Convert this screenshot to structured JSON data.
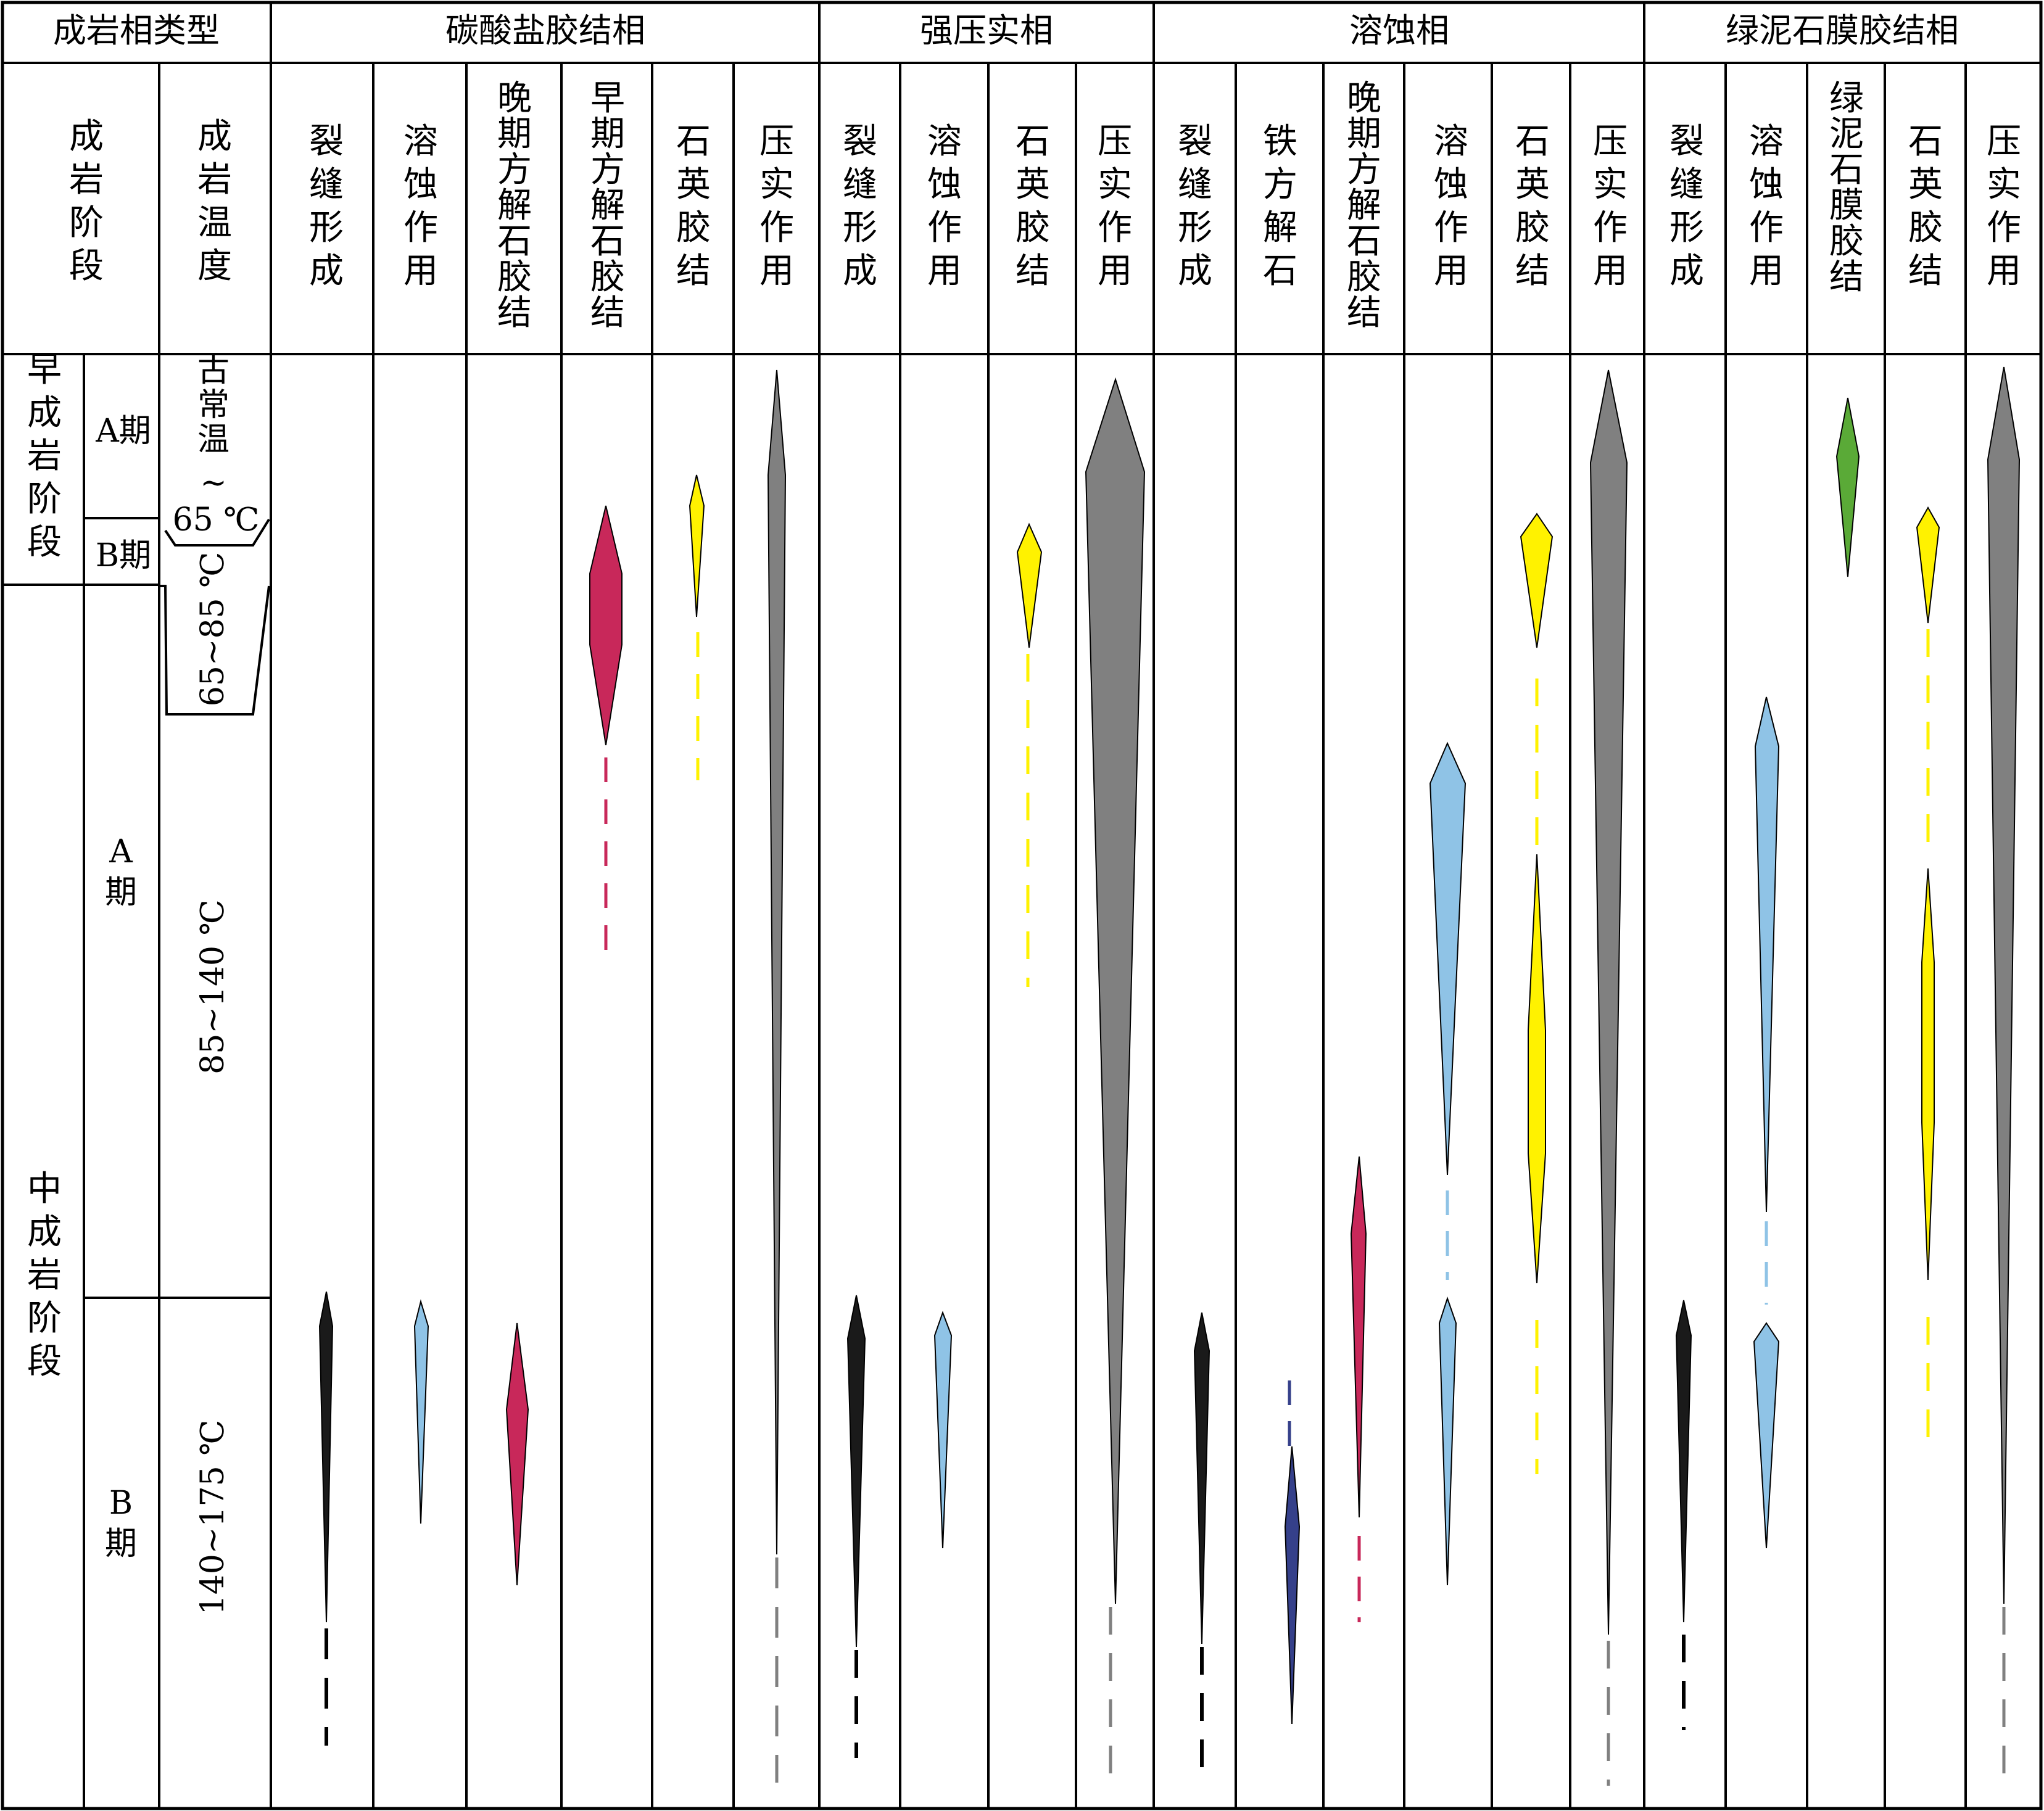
{
  "header": {
    "corner": "成岩相类型",
    "facies": [
      {
        "name": "碳酸盐胶结相"
      },
      {
        "name": "强压实相"
      },
      {
        "name": "溶蚀相"
      },
      {
        "name": "绿泥石膜胶结相"
      }
    ],
    "stage_col": "成岩阶段",
    "temp_col": "成岩温度"
  },
  "columns": [
    {
      "facies": 0,
      "label": "裂缝形成"
    },
    {
      "facies": 0,
      "label": "溶蚀作用"
    },
    {
      "facies": 0,
      "label": "晚期方解石胶结"
    },
    {
      "facies": 0,
      "label": "早期方解石胶结"
    },
    {
      "facies": 0,
      "label": "石英胶结"
    },
    {
      "facies": 0,
      "label": "压实作用"
    },
    {
      "facies": 1,
      "label": "裂缝形成"
    },
    {
      "facies": 1,
      "label": "溶蚀作用"
    },
    {
      "facies": 1,
      "label": "石英胶结"
    },
    {
      "facies": 1,
      "label": "压实作用"
    },
    {
      "facies": 2,
      "label": "裂缝形成"
    },
    {
      "facies": 2,
      "label": "铁方解石"
    },
    {
      "facies": 2,
      "label": "晚期方解石胶结"
    },
    {
      "facies": 2,
      "label": "溶蚀作用"
    },
    {
      "facies": 2,
      "label": "石英胶结"
    },
    {
      "facies": 2,
      "label": "压实作用"
    },
    {
      "facies": 3,
      "label": "裂缝形成"
    },
    {
      "facies": 3,
      "label": "溶蚀作用"
    },
    {
      "facies": 3,
      "label": "绿泥石膜胶结"
    },
    {
      "facies": 3,
      "label": "石英胶结"
    },
    {
      "facies": 3,
      "label": "压实作用"
    }
  ],
  "stages": {
    "early": "早成岩阶段",
    "middle": "中成岩阶段",
    "early_a": "A期",
    "early_b": "B期",
    "middle_a": "A期",
    "middle_b": "B期"
  },
  "temperatures": {
    "t1": "古常温",
    "t1b": "~",
    "t2": "65 ℃",
    "t3": "65~85 ℃",
    "t4": "85~140 ℃",
    "t5": "140~175 ℃"
  },
  "colors": {
    "fracture": "#1a1a1a",
    "dissolution": "#8fc3e6",
    "calcite": "#c8285a",
    "quartz": "#fff200",
    "compaction": "#808080",
    "chlorite": "#5aaa37",
    "ferrocalcite": "#35408a"
  }
}
